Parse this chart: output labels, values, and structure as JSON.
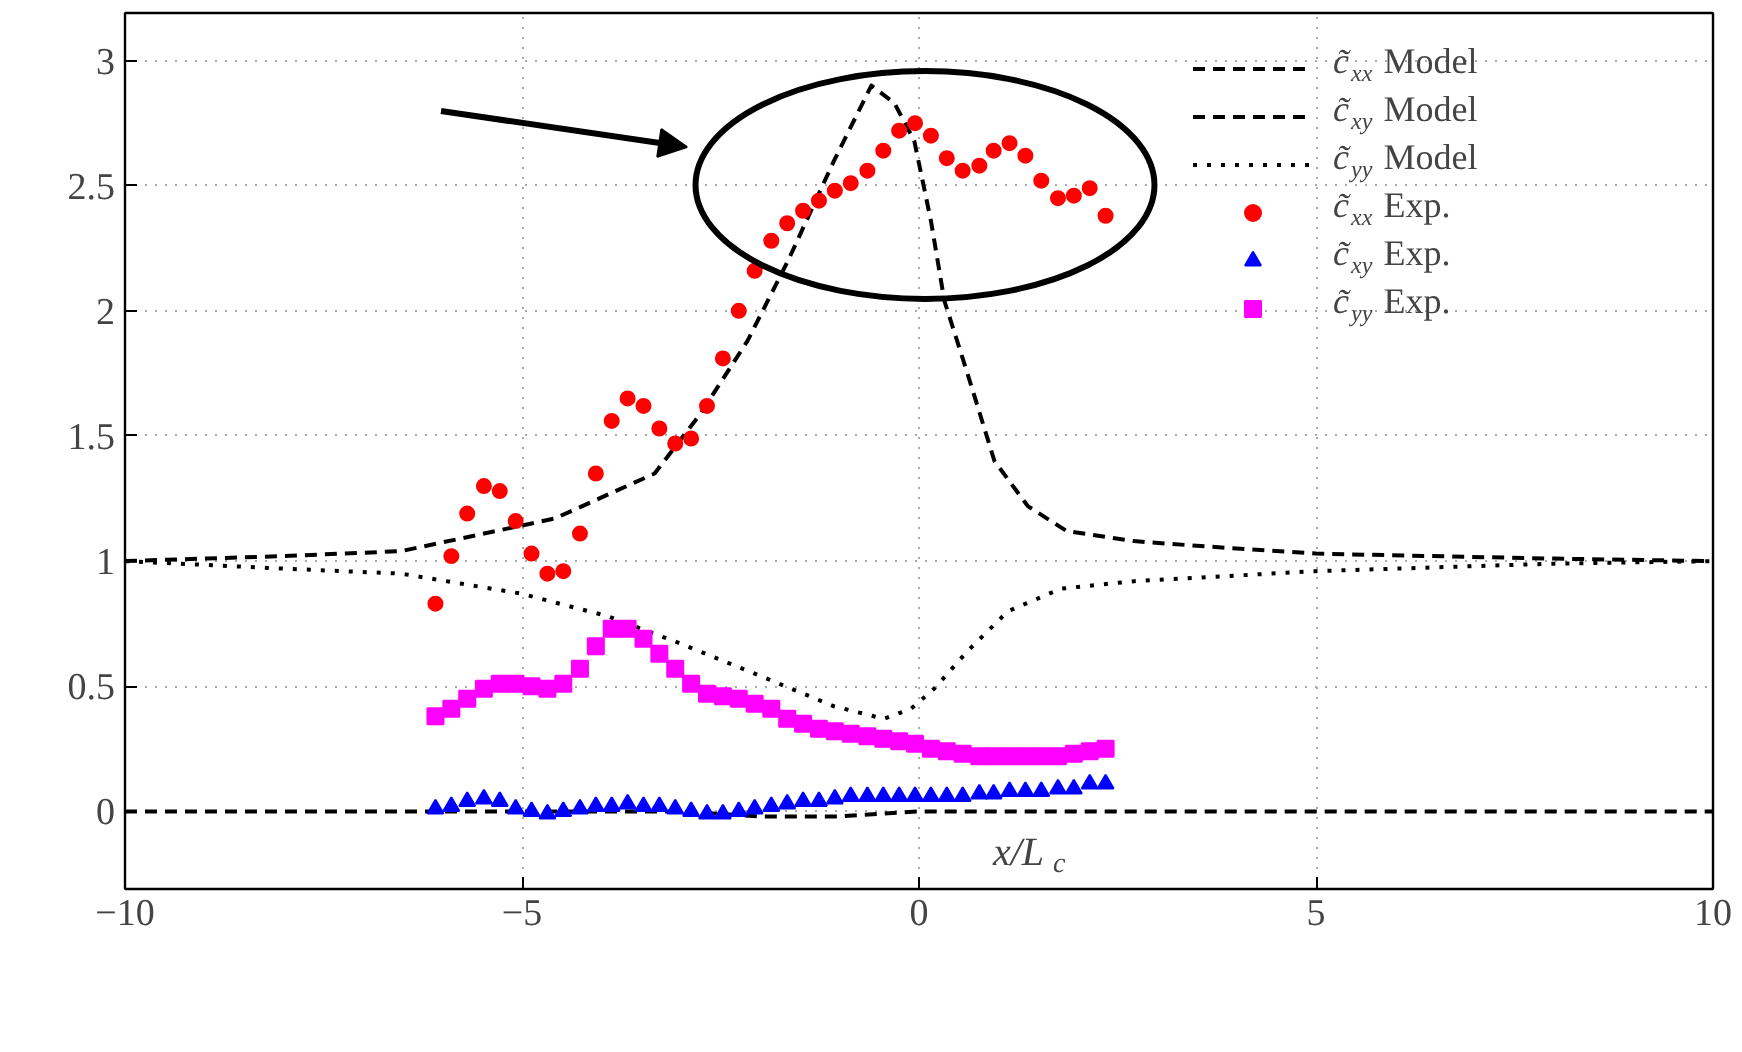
{
  "chart_data": {
    "type": "scatter",
    "xlabel": "x/L$_{c}$",
    "xlim": [
      -10,
      10
    ],
    "ylim": [
      -0.31,
      3.19
    ],
    "xticks": [
      {
        "value": -10,
        "label": "−10"
      },
      {
        "value": -5,
        "label": "−5"
      },
      0,
      5,
      10
    ],
    "yticks": [
      0,
      0.5,
      1,
      1.5,
      2,
      2.5,
      3
    ],
    "grid": true,
    "legend": "top right",
    "x": [
      -6.09,
      -5.89,
      -5.69,
      -5.48,
      -5.28,
      -5.08,
      -4.88,
      -4.68,
      -4.48,
      -4.27,
      -4.07,
      -3.87,
      -3.67,
      -3.47,
      -3.27,
      -3.07,
      -2.87,
      -2.67,
      -2.47,
      -2.27,
      -2.07,
      -1.86,
      -1.66,
      -1.46,
      -1.26,
      -1.06,
      -0.86,
      -0.65,
      -0.45,
      -0.25,
      -0.05,
      0.15,
      0.35,
      0.55,
      0.76,
      0.94,
      1.14,
      1.34,
      1.54,
      1.75,
      1.95,
      2.15,
      2.35
    ],
    "series": [
      {
        "name": "c̃$_{xx}$ Model",
        "type": "line",
        "line_style": "dashed",
        "color": "#000000",
        "x": [
          -10,
          -8,
          -6.52,
          -4.59,
          -3.33,
          -2.75,
          -2.16,
          -1.65,
          -1.07,
          -0.6,
          -0.31,
          -0.06,
          0.15,
          0.32,
          0.61,
          0.95,
          1.37,
          1.86,
          2.71,
          3.55,
          5,
          8,
          10
        ],
        "values": [
          1.0,
          1.02,
          1.04,
          1.17,
          1.35,
          1.59,
          1.88,
          2.2,
          2.6,
          2.9,
          2.83,
          2.68,
          2.36,
          2.04,
          1.75,
          1.4,
          1.22,
          1.12,
          1.08,
          1.06,
          1.03,
          1.01,
          1.0
        ]
      },
      {
        "name": "c̃$_{xy}$ Model",
        "type": "line",
        "line_style": "dashed",
        "color": "#000000",
        "x": [
          -10,
          -3,
          -2,
          -1,
          -0.5,
          0,
          2,
          10
        ],
        "values": [
          0,
          0,
          -0.02,
          -0.02,
          -0.01,
          0,
          0,
          0
        ]
      },
      {
        "name": "c̃$_{yy}$ Model",
        "type": "line",
        "line_style": "dotted",
        "color": "#000000",
        "x": [
          -10,
          -8,
          -6.52,
          -5.01,
          -3.92,
          -3.0,
          -1.99,
          -1.07,
          -0.44,
          -0.1,
          0.19,
          0.61,
          1.12,
          1.79,
          2.71,
          5,
          8,
          10
        ],
        "values": [
          1.0,
          0.97,
          0.95,
          0.87,
          0.78,
          0.67,
          0.54,
          0.42,
          0.37,
          0.41,
          0.49,
          0.64,
          0.8,
          0.89,
          0.92,
          0.96,
          0.99,
          1.0
        ]
      },
      {
        "name": "c̃$_{xx}$ Exp.",
        "marker": "circle",
        "color": "#ff0000",
        "values": [
          0.83,
          1.02,
          1.19,
          1.3,
          1.28,
          1.16,
          1.03,
          0.95,
          0.96,
          1.11,
          1.35,
          1.56,
          1.65,
          1.62,
          1.53,
          1.47,
          1.49,
          1.62,
          1.81,
          2.0,
          2.16,
          2.28,
          2.35,
          2.4,
          2.44,
          2.48,
          2.51,
          2.56,
          2.64,
          2.72,
          2.75,
          2.7,
          2.61,
          2.56,
          2.58,
          2.64,
          2.67,
          2.62,
          2.52,
          2.45,
          2.46,
          2.49,
          2.38
        ]
      },
      {
        "name": "c̃$_{xy}$ Exp.",
        "marker": "triangle",
        "color": "#0000ff",
        "values": [
          0.01,
          0.02,
          0.04,
          0.05,
          0.04,
          0.01,
          0.0,
          -0.01,
          0.0,
          0.01,
          0.02,
          0.02,
          0.03,
          0.02,
          0.02,
          0.01,
          0.0,
          -0.01,
          -0.01,
          0.0,
          0.01,
          0.02,
          0.03,
          0.04,
          0.04,
          0.05,
          0.06,
          0.06,
          0.06,
          0.06,
          0.06,
          0.06,
          0.06,
          0.06,
          0.07,
          0.07,
          0.08,
          0.08,
          0.08,
          0.09,
          0.09,
          0.11,
          0.11
        ]
      },
      {
        "name": "c̃$_{yy}$ Exp.",
        "marker": "square",
        "color": "#ff00ff",
        "values": [
          0.38,
          0.41,
          0.45,
          0.49,
          0.51,
          0.51,
          0.5,
          0.49,
          0.51,
          0.57,
          0.66,
          0.73,
          0.73,
          0.69,
          0.63,
          0.57,
          0.51,
          0.47,
          0.46,
          0.45,
          0.43,
          0.41,
          0.37,
          0.35,
          0.33,
          0.32,
          0.31,
          0.3,
          0.29,
          0.28,
          0.27,
          0.25,
          0.24,
          0.23,
          0.22,
          0.22,
          0.22,
          0.22,
          0.22,
          0.22,
          0.23,
          0.24,
          0.25
        ]
      }
    ]
  }
}
